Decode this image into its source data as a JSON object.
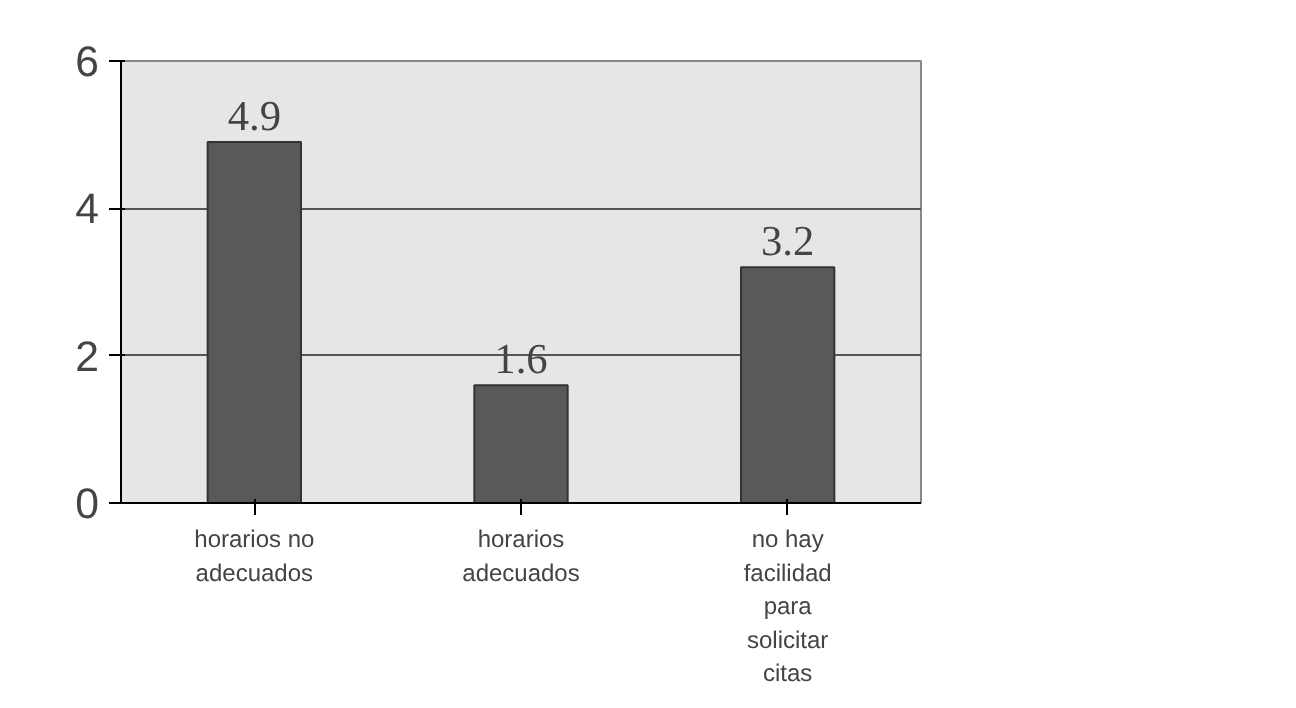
{
  "chart_data": {
    "type": "bar",
    "categories": [
      "horarios no adecuados",
      "horarios adecuados",
      "no hay facilidad para solicitar citas"
    ],
    "values": [
      4.9,
      1.6,
      3.2
    ],
    "color": "#595959",
    "ylim": [
      0,
      6
    ],
    "yticks": [
      0,
      2,
      4,
      6
    ],
    "grid": "y",
    "data_labels": true
  }
}
